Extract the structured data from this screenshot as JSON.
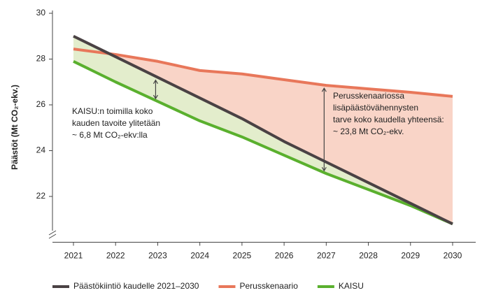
{
  "chart_data": {
    "type": "line",
    "y_label": "Päästöt (Mt CO₂-ekv.)",
    "categories": [
      "2021",
      "2022",
      "2023",
      "2024",
      "2025",
      "2026",
      "2027",
      "2028",
      "2029",
      "2030"
    ],
    "series": [
      {
        "name": "Päästökiintiö kaudelle 2021–2030",
        "color": "#4a4244",
        "values": [
          29.0,
          28.1,
          27.2,
          26.3,
          25.4,
          24.4,
          23.5,
          22.6,
          21.7,
          20.8
        ]
      },
      {
        "name": "Perusskenaario",
        "color": "#e8775a",
        "values": [
          28.44,
          28.2,
          27.9,
          27.5,
          27.35,
          27.1,
          26.85,
          26.7,
          26.55,
          26.37
        ]
      },
      {
        "name": "KAISU",
        "color": "#5ab02e",
        "values": [
          27.9,
          27.0,
          26.15,
          25.3,
          24.6,
          23.8,
          23.0,
          22.3,
          21.6,
          20.8
        ]
      }
    ],
    "ylim": [
      20,
      30
    ],
    "yticks": [
      22,
      24,
      26,
      28,
      30
    ],
    "annotations": [
      [
        "KAISU:n toimilla koko",
        "kauden tavoite ylitetään",
        "~ 6,8 Mt CO₂-ekv:lla"
      ],
      [
        "Perusskenaariossa",
        "lisäpäästövähennysten",
        "tarve koko kaudella yhteensä:",
        "~ 23,8 Mt CO₂-ekv."
      ]
    ]
  }
}
